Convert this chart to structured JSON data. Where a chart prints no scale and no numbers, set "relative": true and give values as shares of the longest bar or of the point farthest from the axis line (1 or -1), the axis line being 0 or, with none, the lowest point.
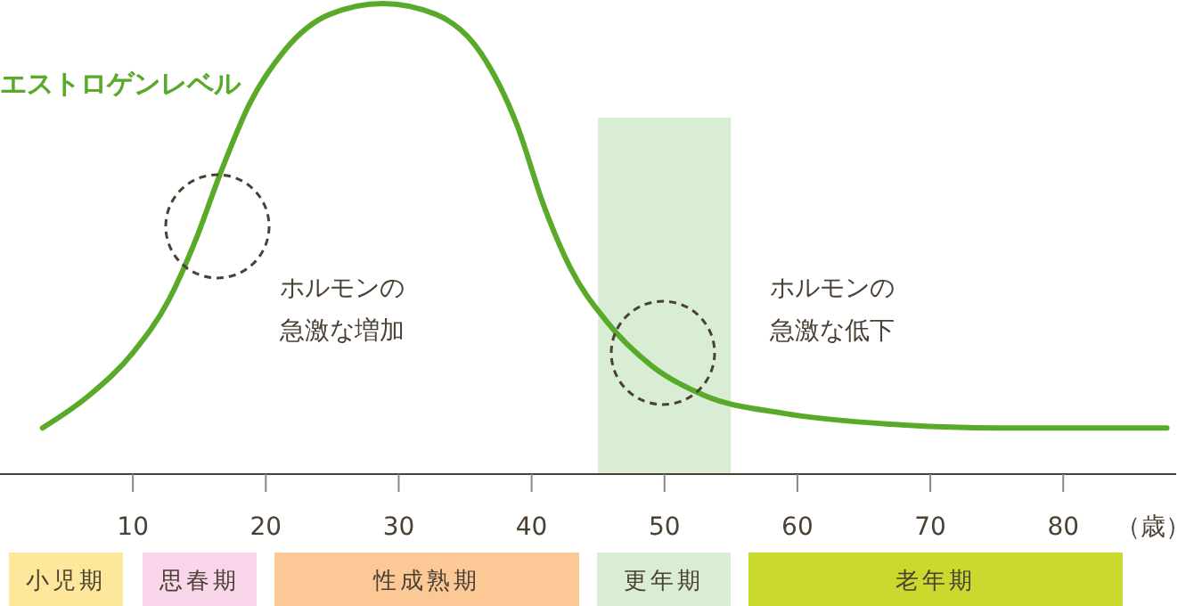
{
  "chart_data": {
    "type": "line",
    "relative": true,
    "xlabel": "（歳）",
    "xlim": [
      0,
      88.5
    ],
    "xticks": [
      10,
      20,
      30,
      40,
      50,
      60,
      70,
      80
    ],
    "x": [
      3.2,
      6.7,
      10,
      12.7,
      14.7,
      16.7,
      18.8,
      21.4,
      24.8,
      28.8,
      32.8,
      36.2,
      38.9,
      40.9,
      42.9,
      45.6,
      49,
      53,
      59,
      67,
      75,
      87.8
    ],
    "series": [
      {
        "name": "エストロゲンレベル",
        "color": "#5aaa2a",
        "values": [
          0.098,
          0.167,
          0.258,
          0.37,
          0.496,
          0.648,
          0.788,
          0.9,
          0.977,
          1,
          0.977,
          0.894,
          0.742,
          0.572,
          0.439,
          0.326,
          0.231,
          0.167,
          0.129,
          0.106,
          0.098,
          0.098
        ]
      }
    ],
    "bands": [
      {
        "axis": "x",
        "from": 45,
        "to": 55,
        "color": "#d9edd4"
      }
    ],
    "annotations": [
      "ホルモンの急激な増加",
      "ホルモンの急激な低下",
      "小児期",
      "思春期",
      "性成熟期",
      "更年期",
      "老年期"
    ]
  }
}
